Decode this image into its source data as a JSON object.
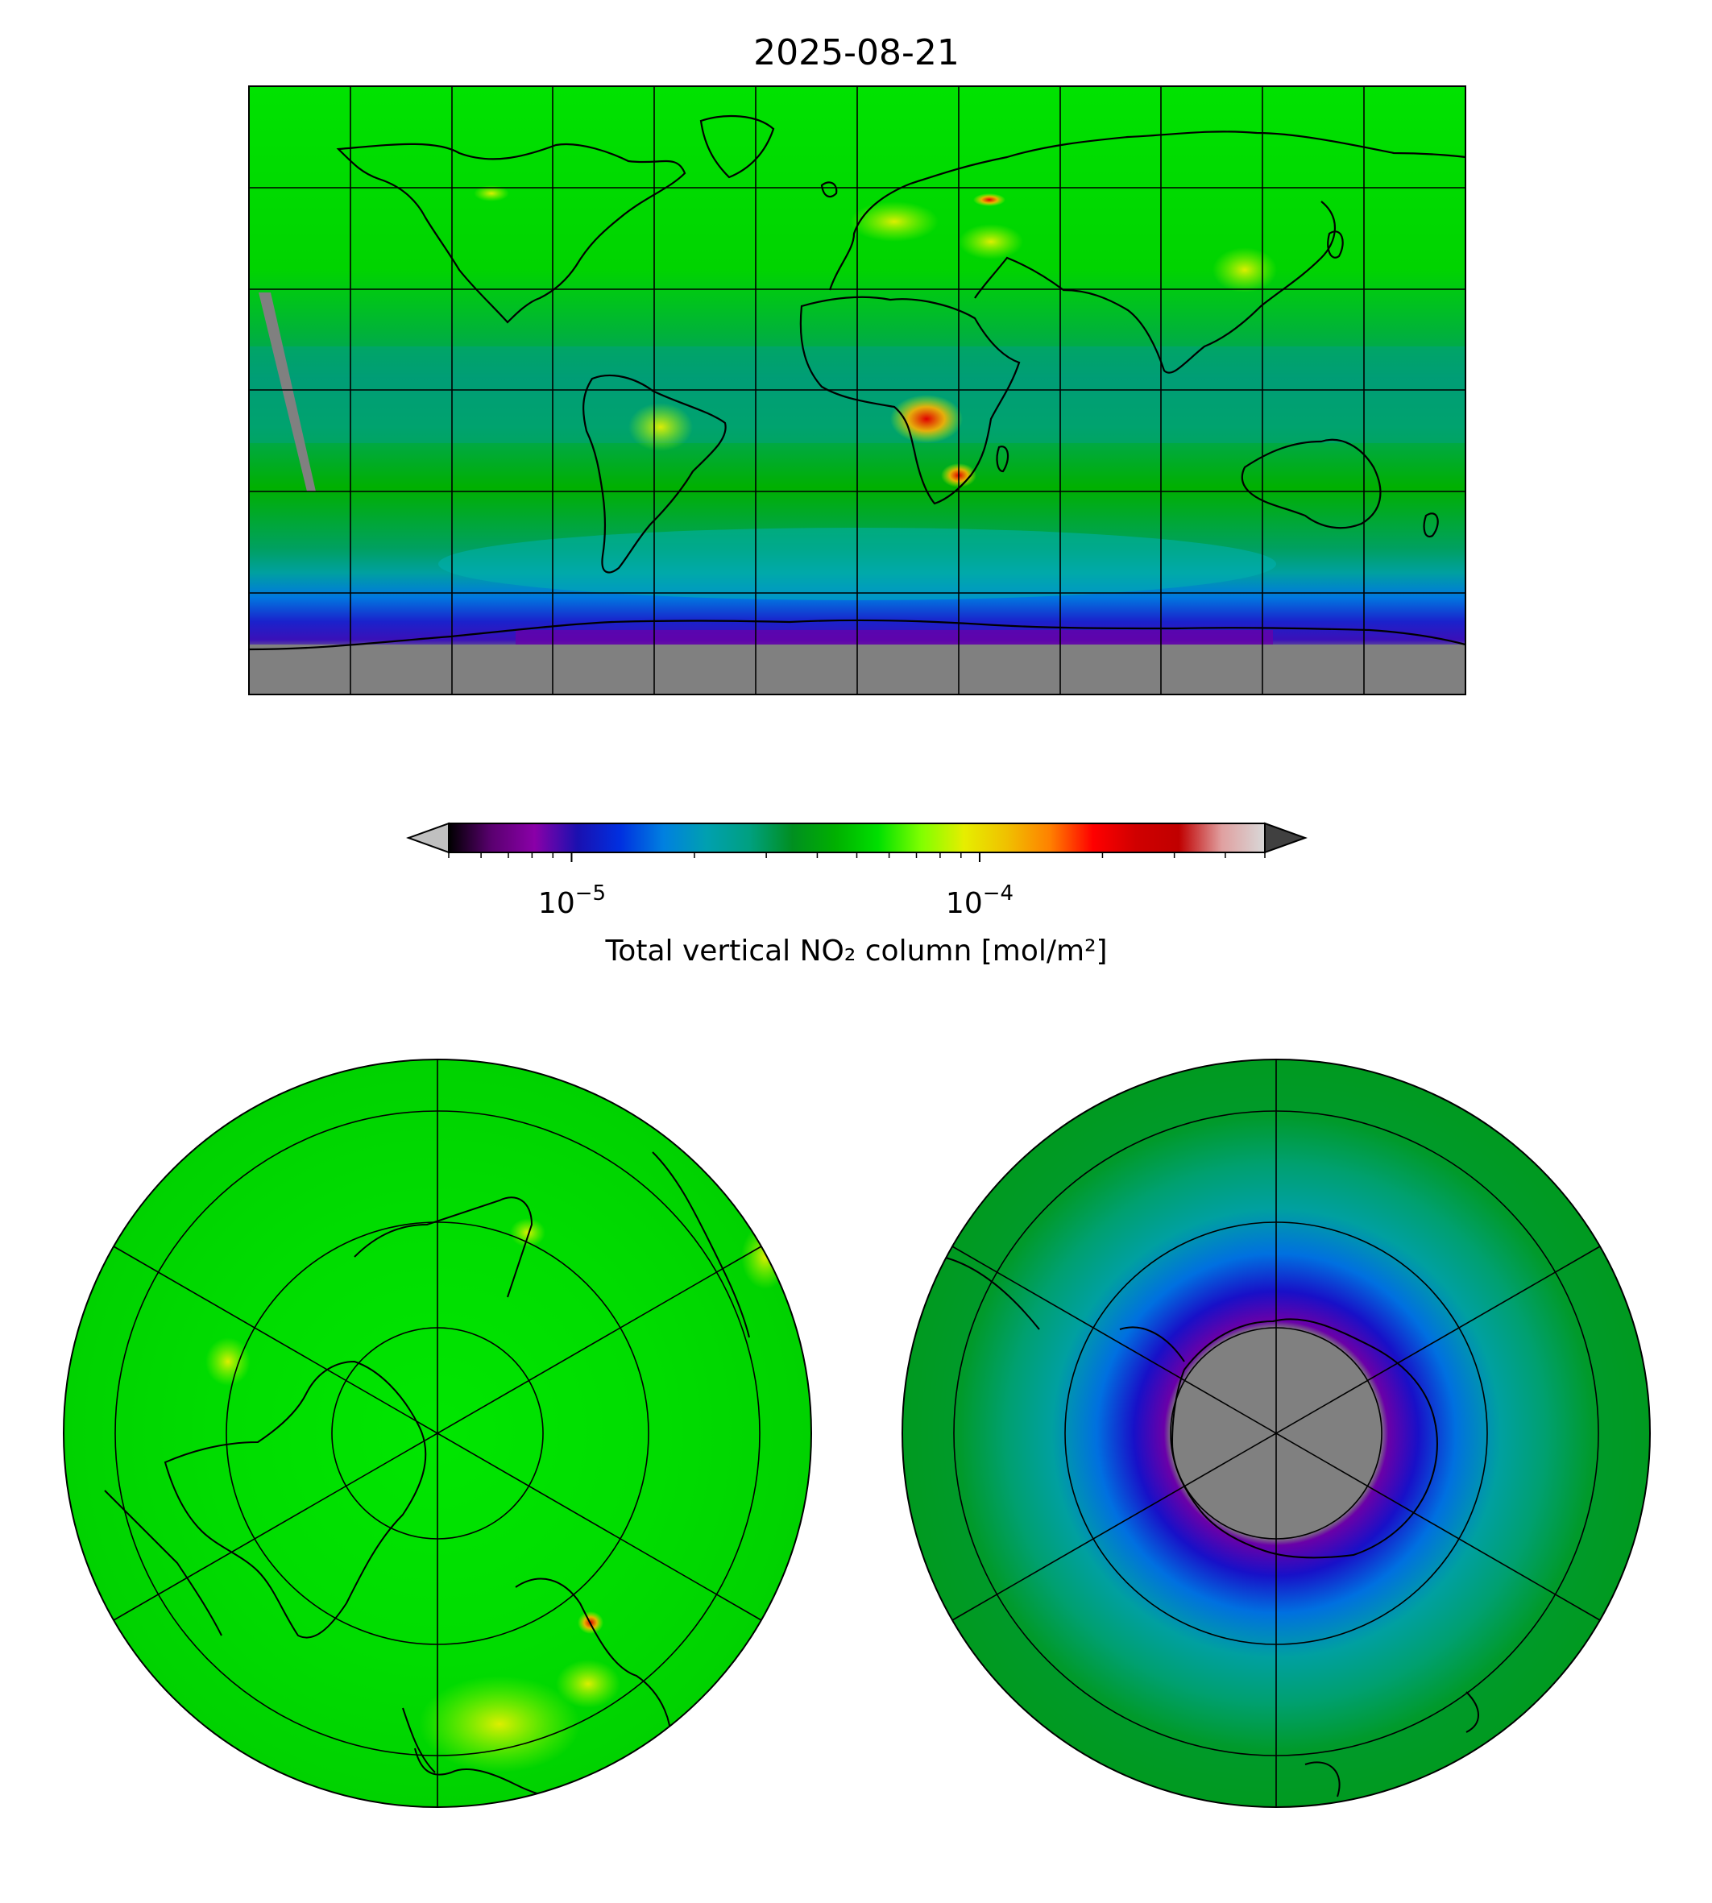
{
  "figure": {
    "title": "2025-08-21",
    "panels": [
      "global",
      "north-polar",
      "south-polar"
    ]
  },
  "colorbar": {
    "label": "Total vertical NO₂ column [mol/m²]",
    "scale": "log",
    "range": [
      5e-06,
      0.0005
    ],
    "extend": "both",
    "ticks": [
      {
        "value": 1e-05,
        "label_base": "10",
        "label_exp": "−5"
      },
      {
        "value": 0.0001,
        "label_base": "10",
        "label_exp": "−4"
      }
    ],
    "colormap_stops": [
      "#000000",
      "#5a0070",
      "#8a00a8",
      "#1a10b0",
      "#0030e0",
      "#0080e0",
      "#00a0b0",
      "#00a080",
      "#008f20",
      "#00b000",
      "#00e000",
      "#80ff00",
      "#e6ee00",
      "#f0c000",
      "#ff8000",
      "#ff0000",
      "#d00000",
      "#c00000",
      "#e0a0a0",
      "#d8d8d8"
    ],
    "under_color": "#c0c0c0",
    "over_color": "#404040"
  },
  "map_colors": {
    "no_data": "#808080",
    "background_field": "#00dd00",
    "tropics_field": "#00a050",
    "high_no2": "#e8f000",
    "hotspot": "#e00000",
    "ozone_hole_low": "#1810c8",
    "lowest": "#7a00a8"
  },
  "chart_data": {
    "type": "heatmap",
    "title": "2025-08-21",
    "variable": "Total vertical NO₂ column",
    "units": "mol/m²",
    "projections": [
      "PlateCarree",
      "NorthPolarStereo",
      "SouthPolarStereo"
    ],
    "gridlines": {
      "lon_step_deg": 30,
      "lat_step_deg": 30
    },
    "observations": [
      {
        "region": "Eastern China",
        "level": "high"
      },
      {
        "region": "Central Africa",
        "level": "high"
      },
      {
        "region": "South America (Brazil)",
        "level": "high"
      },
      {
        "region": "Europe / Middle East",
        "level": "elevated"
      },
      {
        "region": "Antarctic polar night",
        "level": "no data"
      },
      {
        "region": "Southern Ocean ring",
        "level": "low"
      }
    ]
  }
}
